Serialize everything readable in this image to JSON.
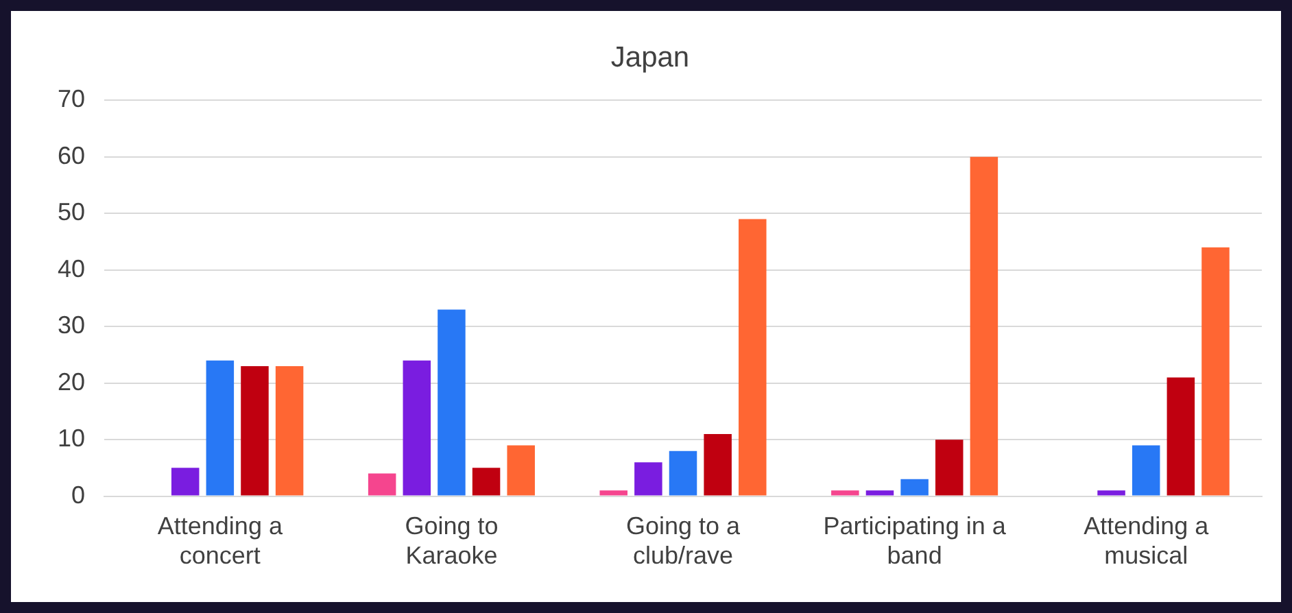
{
  "chart_data": {
    "type": "bar",
    "title": "Japan",
    "categories": [
      "Attending a concert",
      "Going to Karaoke",
      "Going to a club/rave",
      "Participating in a band",
      "Attending a musical"
    ],
    "series": [
      {
        "color": "#f5458e",
        "values": [
          0,
          4,
          1,
          1,
          0
        ]
      },
      {
        "color": "#7a1de0",
        "values": [
          5,
          24,
          6,
          1,
          1
        ]
      },
      {
        "color": "#2878f5",
        "values": [
          24,
          33,
          8,
          3,
          9
        ]
      },
      {
        "color": "#c00010",
        "values": [
          23,
          5,
          11,
          10,
          21
        ]
      },
      {
        "color": "#ff6633",
        "values": [
          23,
          9,
          49,
          60,
          44
        ]
      }
    ],
    "ylim": [
      0,
      70
    ],
    "yticks": [
      0,
      10,
      20,
      30,
      40,
      50,
      60,
      70
    ],
    "grid": "y",
    "legend": false
  }
}
